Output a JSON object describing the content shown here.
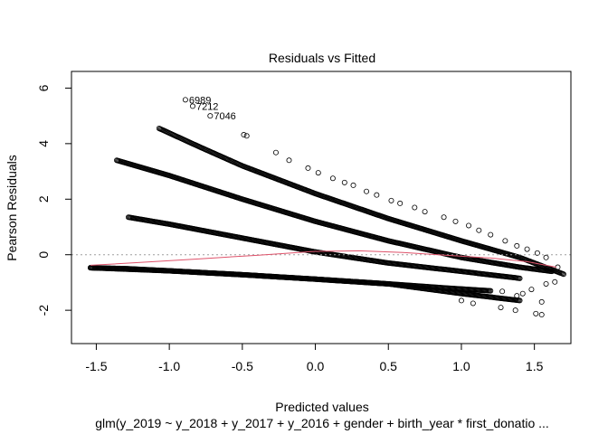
{
  "chart_data": {
    "type": "scatter",
    "title": "Residuals vs Fitted",
    "xlabel": "Predicted values",
    "ylabel": "Pearson Residuals",
    "subtitle": "glm(y_2019 ~ y_2018 + y_2017 + y_2016 + gender + birth_year * first_donatio ...",
    "xlim": [
      -1.67,
      1.75
    ],
    "ylim": [
      -3.2,
      6.6
    ],
    "x_ticks": [
      -1.5,
      -1.0,
      -0.5,
      0.0,
      0.5,
      1.0,
      1.5
    ],
    "x_tick_labels": [
      "-1.5",
      "-1.0",
      "-0.5",
      "0.0",
      "0.5",
      "1.0",
      "1.5"
    ],
    "y_ticks": [
      -2,
      0,
      2,
      4,
      6
    ],
    "y_tick_labels": [
      "-2",
      "0",
      "2",
      "4",
      "6"
    ],
    "reference_line_y": 0,
    "bands": [
      {
        "x": [
          -1.54,
          -1.3,
          -1.0,
          -0.5,
          0.0,
          0.5,
          0.9,
          1.2
        ],
        "y": [
          -0.47,
          -0.5,
          -0.58,
          -0.72,
          -0.88,
          -1.05,
          -1.2,
          -1.3
        ]
      },
      {
        "x": [
          -1.54,
          -1.0,
          -0.5,
          0.0,
          0.5,
          1.0,
          1.4
        ],
        "y": [
          -0.47,
          -0.58,
          -0.72,
          -0.88,
          -1.05,
          -1.4,
          -1.65
        ]
      },
      {
        "x": [
          -1.28,
          -1.0,
          -0.5,
          0.0,
          0.5,
          1.0,
          1.4
        ],
        "y": [
          1.35,
          1.1,
          0.6,
          0.1,
          -0.3,
          -0.6,
          -0.85
        ]
      },
      {
        "x": [
          -1.36,
          -1.0,
          -0.5,
          0.0,
          0.5,
          1.0,
          1.4,
          1.62
        ],
        "y": [
          3.4,
          2.85,
          2.0,
          1.2,
          0.5,
          -0.1,
          -0.45,
          -0.6
        ]
      },
      {
        "x": [
          -1.07,
          -0.8,
          -0.5,
          0.0,
          0.5,
          1.0,
          1.4,
          1.7
        ],
        "y": [
          4.55,
          3.9,
          3.2,
          2.2,
          1.3,
          0.5,
          -0.1,
          -0.7
        ]
      }
    ],
    "outliers": [
      {
        "x": -0.89,
        "y": 5.58,
        "label": "6989"
      },
      {
        "x": -0.84,
        "y": 5.35,
        "label": "7212"
      },
      {
        "x": -0.72,
        "y": 5.0,
        "label": "7046"
      },
      {
        "x": -0.49,
        "y": 4.32,
        "label": ""
      },
      {
        "x": -0.47,
        "y": 4.28,
        "label": ""
      },
      {
        "x": -0.27,
        "y": 3.68,
        "label": ""
      },
      {
        "x": -0.18,
        "y": 3.4,
        "label": ""
      },
      {
        "x": -0.05,
        "y": 3.12,
        "label": ""
      },
      {
        "x": 0.02,
        "y": 2.95,
        "label": ""
      },
      {
        "x": 0.12,
        "y": 2.75,
        "label": ""
      },
      {
        "x": 0.2,
        "y": 2.6,
        "label": ""
      },
      {
        "x": 0.26,
        "y": 2.5,
        "label": ""
      },
      {
        "x": 0.35,
        "y": 2.28,
        "label": ""
      },
      {
        "x": 0.42,
        "y": 2.15,
        "label": ""
      },
      {
        "x": 0.52,
        "y": 1.95,
        "label": ""
      },
      {
        "x": 0.58,
        "y": 1.85,
        "label": ""
      },
      {
        "x": 0.68,
        "y": 1.7,
        "label": ""
      },
      {
        "x": 0.75,
        "y": 1.55,
        "label": ""
      },
      {
        "x": 0.88,
        "y": 1.35,
        "label": ""
      },
      {
        "x": 0.96,
        "y": 1.2,
        "label": ""
      },
      {
        "x": 1.05,
        "y": 1.05,
        "label": ""
      },
      {
        "x": 1.12,
        "y": 0.88,
        "label": ""
      },
      {
        "x": 1.2,
        "y": 0.72,
        "label": ""
      },
      {
        "x": 1.3,
        "y": 0.5,
        "label": ""
      },
      {
        "x": 1.38,
        "y": 0.32,
        "label": ""
      },
      {
        "x": 1.45,
        "y": 0.2,
        "label": ""
      },
      {
        "x": 1.52,
        "y": 0.06,
        "label": ""
      },
      {
        "x": 1.58,
        "y": -0.1,
        "label": ""
      },
      {
        "x": 1.66,
        "y": -0.45,
        "label": ""
      },
      {
        "x": 1.64,
        "y": -0.98,
        "label": ""
      },
      {
        "x": 1.58,
        "y": -1.05,
        "label": ""
      },
      {
        "x": 1.48,
        "y": -1.25,
        "label": ""
      },
      {
        "x": 1.42,
        "y": -1.4,
        "label": ""
      },
      {
        "x": 1.38,
        "y": -1.48,
        "label": ""
      },
      {
        "x": 1.28,
        "y": -1.32,
        "label": ""
      },
      {
        "x": 1.08,
        "y": -1.75,
        "label": ""
      },
      {
        "x": 1.0,
        "y": -1.65,
        "label": ""
      },
      {
        "x": 1.55,
        "y": -1.7,
        "label": ""
      },
      {
        "x": 1.27,
        "y": -1.9,
        "label": ""
      },
      {
        "x": 1.37,
        "y": -2.0,
        "label": ""
      },
      {
        "x": 1.51,
        "y": -2.12,
        "label": ""
      },
      {
        "x": 1.55,
        "y": -2.16,
        "label": ""
      }
    ],
    "smooth_line": {
      "x": [
        -1.54,
        -1.2,
        -0.8,
        -0.4,
        0.0,
        0.3,
        0.6,
        0.9,
        1.2,
        1.45,
        1.65
      ],
      "y": [
        -0.38,
        -0.28,
        -0.15,
        -0.02,
        0.12,
        0.14,
        0.08,
        -0.02,
        -0.12,
        -0.25,
        -0.45
      ]
    },
    "grid": false,
    "legend": "none",
    "colors": {
      "points": "#000000",
      "smooth": "#DF536B",
      "reference": "#9E9E9E",
      "axis": "#000000"
    }
  }
}
